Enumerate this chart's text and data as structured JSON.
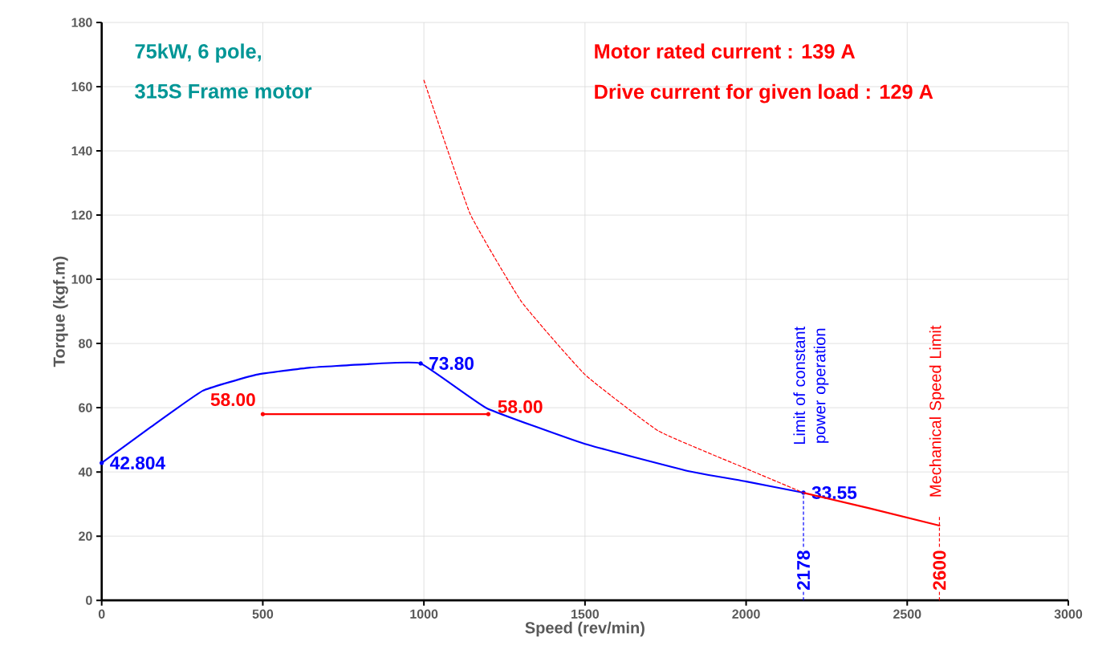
{
  "chart_data": {
    "type": "line",
    "xlabel": "Speed (rev/min)",
    "ylabel": "Torque (kgf.m)",
    "xlim": [
      0,
      3000
    ],
    "xticks": [
      0,
      500,
      1000,
      1500,
      2000,
      2500,
      3000
    ],
    "ylim": [
      0,
      180
    ],
    "yticks": [
      0,
      20,
      40,
      60,
      80,
      100,
      120,
      140,
      160,
      180
    ],
    "grid": true,
    "marker": "none",
    "series": [
      {
        "color": "#0000ff",
        "x": [
          0,
          150,
          314,
          481,
          647,
          813,
          990,
          1196,
          1500,
          1819,
          2001,
          2178
        ],
        "values": [
          42.804,
          53.8,
          65.3,
          70.3,
          72.5,
          73.5,
          73.8,
          59.8,
          48.7,
          40.3,
          37.0,
          33.55
        ],
        "value_labels": [
          "42.804",
          null,
          null,
          null,
          null,
          null,
          "73.80",
          null,
          null,
          null,
          null,
          "33.55"
        ]
      },
      {
        "color": "#ff0000",
        "x": [
          2178,
          2382,
          2600
        ],
        "values": [
          33.5,
          28.7,
          23.3
        ]
      },
      {
        "color": "#ff0000",
        "line_style": "dashed",
        "x": [
          1000,
          1143,
          1303,
          1500,
          1729,
          2001,
          2178
        ],
        "values": [
          162,
          120.5,
          93,
          70.3,
          52.7,
          41,
          33.5
        ]
      },
      {
        "color": "#ff0000",
        "x": [
          500,
          1200
        ],
        "values": [
          58,
          58
        ],
        "value_labels": [
          "58.00",
          "58.00"
        ]
      }
    ],
    "ref_lines": [
      {
        "axis": "x",
        "value": 2178,
        "label": "2178",
        "color": "#0000ff",
        "line_style": "dashed"
      },
      {
        "axis": "x",
        "value": 2600,
        "label": "2600",
        "color": "#ff0000",
        "line_style": "dashed"
      }
    ],
    "annotations": [
      "75kW, 6 pole,",
      "315S Frame motor",
      "Motor rated current : 139 A",
      "Drive current for given load : 129 A",
      "Limit of constant power operation",
      "Mechanical Speed Limit"
    ]
  }
}
